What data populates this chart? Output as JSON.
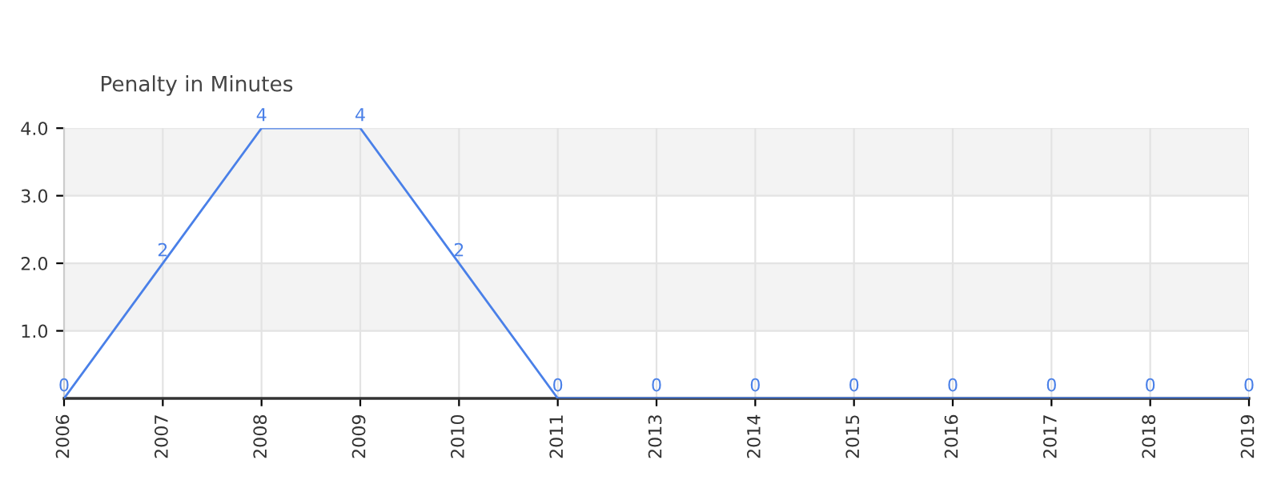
{
  "chart_data": {
    "type": "line",
    "ylabel": "Penalty in Minutes",
    "categories": [
      "2006",
      "2007",
      "2008",
      "2009",
      "2010",
      "2011",
      "2013",
      "2014",
      "2015",
      "2016",
      "2017",
      "2018",
      "2019"
    ],
    "series": [
      {
        "color": "#4a80e8",
        "values": [
          0,
          2,
          4,
          4,
          2,
          0,
          0,
          0,
          0,
          0,
          0,
          0,
          0
        ]
      }
    ],
    "ylim": [
      0,
      4
    ],
    "yticks": [
      {
        "value": 1,
        "label": "1.0"
      },
      {
        "value": 2,
        "label": "2.0"
      },
      {
        "value": 3,
        "label": "3.0"
      },
      {
        "value": 4,
        "label": "4.0"
      }
    ],
    "bands": [
      {
        "axis": "y",
        "from": 1,
        "to": 2,
        "color": "#f3f3f3"
      },
      {
        "axis": "y",
        "from": 3,
        "to": 4,
        "color": "#f3f3f3"
      }
    ],
    "grid": true,
    "data_labels": true,
    "marker": "none",
    "line_style": "solid",
    "legend": false
  }
}
